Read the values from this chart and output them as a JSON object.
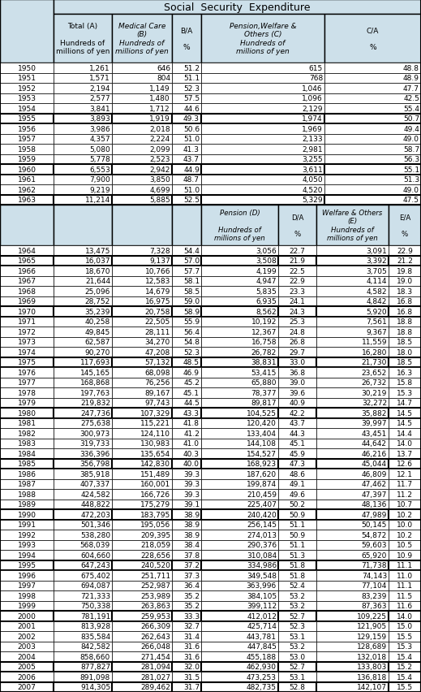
{
  "title": "Social  Security  Expenditure",
  "bg_header": "#cde0ea",
  "bg_white": "#ffffff",
  "border": "#000000",
  "rows_part1": [
    [
      "1950",
      "1,261",
      "646",
      "51.2",
      "615",
      "48.8"
    ],
    [
      "1951",
      "1,571",
      "804",
      "51.1",
      "768",
      "48.9"
    ],
    [
      "1952",
      "2,194",
      "1,149",
      "52.3",
      "1,046",
      "47.7"
    ],
    [
      "1953",
      "2,577",
      "1,480",
      "57.5",
      "1,096",
      "42.5"
    ],
    [
      "1954",
      "3,841",
      "1,712",
      "44.6",
      "2,129",
      "55.4"
    ],
    [
      "1955",
      "3,893",
      "1,919",
      "49.3",
      "1,974",
      "50.7"
    ],
    [
      "1956",
      "3,986",
      "2,018",
      "50.6",
      "1,969",
      "49.4"
    ],
    [
      "1957",
      "4,357",
      "2,224",
      "51.0",
      "2,133",
      "49.0"
    ],
    [
      "1958",
      "5,080",
      "2,099",
      "41.3",
      "2,981",
      "58.7"
    ],
    [
      "1959",
      "5,778",
      "2,523",
      "43.7",
      "3,255",
      "56.3"
    ],
    [
      "1960",
      "6,553",
      "2,942",
      "44.9",
      "3,611",
      "55.1"
    ],
    [
      "1961",
      "7,900",
      "3,850",
      "48.7",
      "4,050",
      "51.3"
    ],
    [
      "1962",
      "9,219",
      "4,699",
      "51.0",
      "4,520",
      "49.0"
    ],
    [
      "1963",
      "11,214",
      "5,885",
      "52.5",
      "5,329",
      "47.5"
    ]
  ],
  "thick_after_part1": [
    "1955",
    "1960",
    "1963"
  ],
  "rows_part2": [
    [
      "1964",
      "13,475",
      "7,328",
      "54.4",
      "3,056",
      "22.7",
      "3,091",
      "22.9"
    ],
    [
      "1965",
      "16,037",
      "9,137",
      "57.0",
      "3,508",
      "21.9",
      "3,392",
      "21.2"
    ],
    [
      "1966",
      "18,670",
      "10,766",
      "57.7",
      "4,199",
      "22.5",
      "3,705",
      "19.8"
    ],
    [
      "1967",
      "21,644",
      "12,583",
      "58.1",
      "4,947",
      "22.9",
      "4,114",
      "19.0"
    ],
    [
      "1968",
      "25,096",
      "14,679",
      "58.5",
      "5,835",
      "23.3",
      "4,582",
      "18.3"
    ],
    [
      "1969",
      "28,752",
      "16,975",
      "59.0",
      "6,935",
      "24.1",
      "4,842",
      "16.8"
    ],
    [
      "1970",
      "35,239",
      "20,758",
      "58.9",
      "8,562",
      "24.3",
      "5,920",
      "16.8"
    ],
    [
      "1971",
      "40,258",
      "22,505",
      "55.9",
      "10,192",
      "25.3",
      "7,561",
      "18.8"
    ],
    [
      "1972",
      "49,845",
      "28,111",
      "56.4",
      "12,367",
      "24.8",
      "9,367",
      "18.8"
    ],
    [
      "1973",
      "62,587",
      "34,270",
      "54.8",
      "16,758",
      "26.8",
      "11,559",
      "18.5"
    ],
    [
      "1974",
      "90,270",
      "47,208",
      "52.3",
      "26,782",
      "29.7",
      "16,280",
      "18.0"
    ],
    [
      "1975",
      "117,693",
      "57,132",
      "48.5",
      "38,831",
      "33.0",
      "21,730",
      "18.5"
    ],
    [
      "1976",
      "145,165",
      "68,098",
      "46.9",
      "53,415",
      "36.8",
      "23,652",
      "16.3"
    ],
    [
      "1977",
      "168,868",
      "76,256",
      "45.2",
      "65,880",
      "39.0",
      "26,732",
      "15.8"
    ],
    [
      "1978",
      "197,763",
      "89,167",
      "45.1",
      "78,377",
      "39.6",
      "30,219",
      "15.3"
    ],
    [
      "1979",
      "219,832",
      "97,743",
      "44.5",
      "89,817",
      "40.9",
      "32,272",
      "14.7"
    ],
    [
      "1980",
      "247,736",
      "107,329",
      "43.3",
      "104,525",
      "42.2",
      "35,882",
      "14.5"
    ],
    [
      "1981",
      "275,638",
      "115,221",
      "41.8",
      "120,420",
      "43.7",
      "39,997",
      "14.5"
    ],
    [
      "1982",
      "300,973",
      "124,110",
      "41.2",
      "133,404",
      "44.3",
      "43,451",
      "14.4"
    ],
    [
      "1983",
      "319,733",
      "130,983",
      "41.0",
      "144,108",
      "45.1",
      "44,642",
      "14.0"
    ],
    [
      "1984",
      "336,396",
      "135,654",
      "40.3",
      "154,527",
      "45.9",
      "46,216",
      "13.7"
    ],
    [
      "1985",
      "356,798",
      "142,830",
      "40.0",
      "168,923",
      "47.3",
      "45,044",
      "12.6"
    ],
    [
      "1986",
      "385,918",
      "151,489",
      "39.3",
      "187,620",
      "48.6",
      "46,809",
      "12.1"
    ],
    [
      "1987",
      "407,337",
      "160,001",
      "39.3",
      "199,874",
      "49.1",
      "47,462",
      "11.7"
    ],
    [
      "1988",
      "424,582",
      "166,726",
      "39.3",
      "210,459",
      "49.6",
      "47,397",
      "11.2"
    ],
    [
      "1989",
      "448,822",
      "175,279",
      "39.1",
      "225,407",
      "50.2",
      "48,136",
      "10.7"
    ],
    [
      "1990",
      "472,203",
      "183,795",
      "38.9",
      "240,420",
      "50.9",
      "47,989",
      "10.2"
    ],
    [
      "1991",
      "501,346",
      "195,056",
      "38.9",
      "256,145",
      "51.1",
      "50,145",
      "10.0"
    ],
    [
      "1992",
      "538,280",
      "209,395",
      "38.9",
      "274,013",
      "50.9",
      "54,872",
      "10.2"
    ],
    [
      "1993",
      "568,039",
      "218,059",
      "38.4",
      "290,376",
      "51.1",
      "59,603",
      "10.5"
    ],
    [
      "1994",
      "604,660",
      "228,656",
      "37.8",
      "310,084",
      "51.3",
      "65,920",
      "10.9"
    ],
    [
      "1995",
      "647,243",
      "240,520",
      "37.2",
      "334,986",
      "51.8",
      "71,738",
      "11.1"
    ],
    [
      "1996",
      "675,402",
      "251,711",
      "37.3",
      "349,548",
      "51.8",
      "74,143",
      "11.0"
    ],
    [
      "1997",
      "694,087",
      "252,987",
      "36.4",
      "363,996",
      "52.4",
      "77,104",
      "11.1"
    ],
    [
      "1998",
      "721,333",
      "253,989",
      "35.2",
      "384,105",
      "53.2",
      "83,239",
      "11.5"
    ],
    [
      "1999",
      "750,338",
      "263,863",
      "35.2",
      "399,112",
      "53.2",
      "87,363",
      "11.6"
    ],
    [
      "2000",
      "781,191",
      "259,953",
      "33.3",
      "412,012",
      "52.7",
      "109,225",
      "14.0"
    ],
    [
      "2001",
      "813,928",
      "266,309",
      "32.7",
      "425,714",
      "52.3",
      "121,905",
      "15.0"
    ],
    [
      "2002",
      "835,584",
      "262,643",
      "31.4",
      "443,781",
      "53.1",
      "129,159",
      "15.5"
    ],
    [
      "2003",
      "842,582",
      "266,048",
      "31.6",
      "447,845",
      "53.2",
      "128,689",
      "15.3"
    ],
    [
      "2004",
      "858,660",
      "271,454",
      "31.6",
      "455,188",
      "53.0",
      "132,018",
      "15.4"
    ],
    [
      "2005",
      "877,827",
      "281,094",
      "32.0",
      "462,930",
      "52.7",
      "133,803",
      "15.2"
    ],
    [
      "2006",
      "891,098",
      "281,027",
      "31.5",
      "473,253",
      "53.1",
      "136,818",
      "15.4"
    ],
    [
      "2007",
      "914,305",
      "289,462",
      "31.7",
      "482,735",
      "52.8",
      "142,107",
      "15.5"
    ]
  ],
  "thick_after_part2": [
    "1965",
    "1970",
    "1975",
    "1980",
    "1985",
    "1990",
    "1995",
    "2000",
    "2005",
    "2007"
  ]
}
